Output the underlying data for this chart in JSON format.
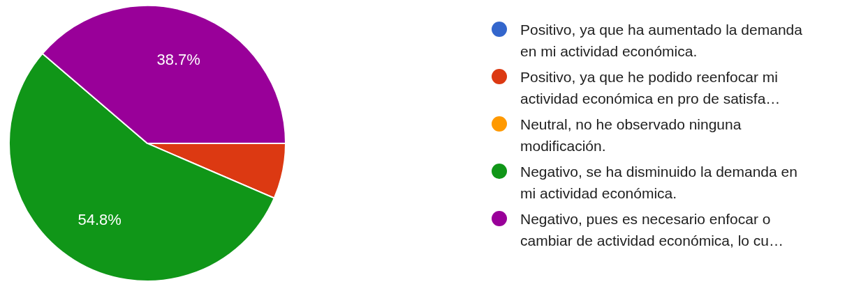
{
  "chart_data": {
    "type": "pie",
    "categories": [
      "Positivo, ya que ha aumentado la demanda en mi actividad económica.",
      "Positivo, ya que he podido reenfocar mi actividad económica en pro de satisfa…",
      "Neutral, no he observado ninguna modificación.",
      "Negativo, se ha disminuido la demanda en mi actividad económica.",
      "Negativo, pues es necesario enfocar o cambiar de actividad económica, lo cu…"
    ],
    "values": [
      0,
      6.5,
      0,
      54.8,
      38.7
    ],
    "colors": [
      "#3366cc",
      "#dc3912",
      "#ff9900",
      "#109618",
      "#990099"
    ],
    "value_labels": [
      null,
      null,
      null,
      "54.8%",
      "38.7%"
    ],
    "legend": "right"
  }
}
